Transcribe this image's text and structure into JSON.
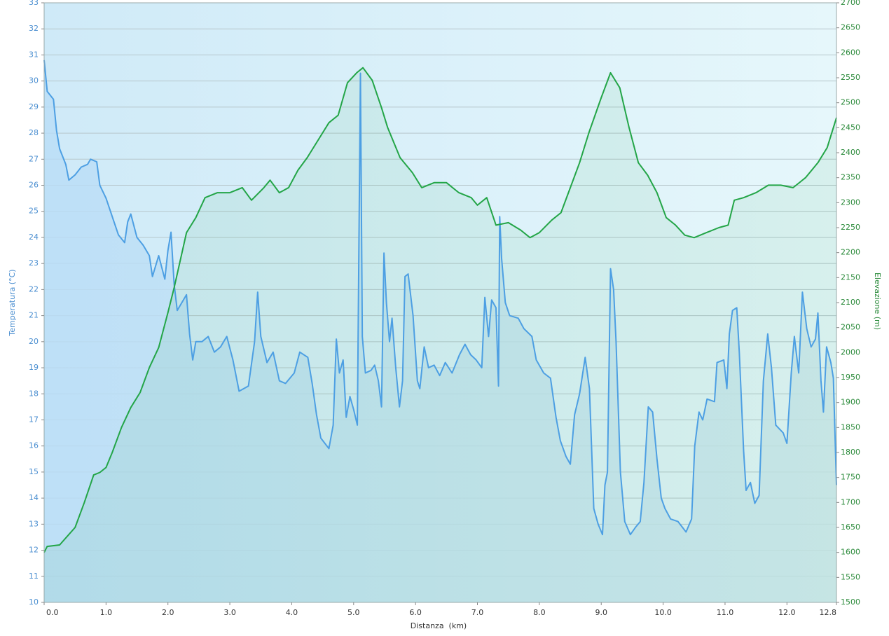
{
  "chart_data": {
    "type": "line",
    "x_label": "Distanza  (km)",
    "y_label": "Temperatura (°C)",
    "y2_label": "Elevazione (m)",
    "xlim": [
      0,
      12.8
    ],
    "xticks": [
      {
        "value": 0,
        "label": "0.0"
      },
      {
        "value": 1,
        "label": "1.0"
      },
      {
        "value": 2,
        "label": "2.0"
      },
      {
        "value": 3,
        "label": "3.0"
      },
      {
        "value": 4,
        "label": "4.0"
      },
      {
        "value": 5,
        "label": "5.0"
      },
      {
        "value": 6,
        "label": "6.0"
      },
      {
        "value": 7,
        "label": "7.0"
      },
      {
        "value": 8,
        "label": "8.0"
      },
      {
        "value": 9,
        "label": "9.0"
      },
      {
        "value": 10,
        "label": "10.0"
      },
      {
        "value": 11,
        "label": "11.0"
      },
      {
        "value": 12,
        "label": "12.0"
      },
      {
        "value": 12.8,
        "label": "12.8"
      }
    ],
    "ylim": [
      10,
      33
    ],
    "yticks": [
      10,
      11,
      12,
      13,
      14,
      15,
      16,
      17,
      18,
      19,
      20,
      21,
      22,
      23,
      24,
      25,
      26,
      27,
      28,
      29,
      30,
      31,
      32,
      33
    ],
    "y2lim": [
      1500,
      2700
    ],
    "y2ticks": [
      1500,
      1550,
      1600,
      1650,
      1700,
      1750,
      1800,
      1850,
      1900,
      1950,
      2000,
      2050,
      2100,
      2150,
      2200,
      2250,
      2300,
      2350,
      2400,
      2450,
      2500,
      2550,
      2600,
      2650,
      2700
    ],
    "grid": true,
    "series": [
      {
        "name": "Temperatura",
        "color": "#4d9fe3",
        "axis": "y",
        "x": [
          0,
          0.05,
          0.15,
          0.2,
          0.25,
          0.35,
          0.4,
          0.5,
          0.6,
          0.7,
          0.75,
          0.85,
          0.9,
          1.0,
          1.1,
          1.2,
          1.3,
          1.35,
          1.4,
          1.5,
          1.6,
          1.7,
          1.75,
          1.85,
          1.95,
          2.0,
          2.05,
          2.1,
          2.15,
          2.25,
          2.3,
          2.35,
          2.4,
          2.45,
          2.55,
          2.65,
          2.75,
          2.85,
          2.95,
          3.05,
          3.15,
          3.3,
          3.4,
          3.45,
          3.5,
          3.6,
          3.7,
          3.8,
          3.9,
          4.04,
          4.13,
          4.26,
          4.33,
          4.4,
          4.47,
          4.6,
          4.67,
          4.72,
          4.77,
          4.83,
          4.88,
          4.94,
          5.0,
          5.06,
          5.11,
          5.14,
          5.19,
          5.28,
          5.34,
          5.4,
          5.45,
          5.49,
          5.53,
          5.58,
          5.62,
          5.68,
          5.74,
          5.79,
          5.83,
          5.88,
          5.96,
          6.03,
          6.07,
          6.14,
          6.21,
          6.3,
          6.39,
          6.48,
          6.59,
          6.71,
          6.8,
          6.89,
          6.98,
          7.07,
          7.12,
          7.18,
          7.23,
          7.3,
          7.34,
          7.36,
          7.39,
          7.45,
          7.52,
          7.66,
          7.75,
          7.88,
          7.95,
          8.07,
          8.18,
          8.27,
          8.34,
          8.43,
          8.5,
          8.57,
          8.65,
          8.74,
          8.81,
          8.88,
          8.95,
          9.02,
          9.06,
          9.1,
          9.15,
          9.2,
          9.24,
          9.31,
          9.38,
          9.47,
          9.56,
          9.63,
          9.69,
          9.76,
          9.83,
          9.9,
          9.97,
          10.03,
          10.12,
          10.24,
          10.37,
          10.46,
          10.51,
          10.58,
          10.64,
          10.71,
          10.83,
          10.87,
          10.98,
          11.03,
          11.07,
          11.12,
          11.19,
          11.23,
          11.3,
          11.34,
          11.41,
          11.48,
          11.55,
          11.62,
          11.69,
          11.75,
          11.82,
          11.94,
          12.0,
          12.07,
          12.12,
          12.19,
          12.25,
          12.32,
          12.39,
          12.46,
          12.5,
          12.55,
          12.59,
          12.64,
          12.71,
          12.75,
          12.8
        ],
        "values": [
          30.8,
          29.6,
          29.3,
          28.1,
          27.4,
          26.8,
          26.2,
          26.4,
          26.7,
          26.8,
          27.0,
          26.9,
          26.0,
          25.5,
          24.8,
          24.1,
          23.8,
          24.6,
          24.9,
          24.0,
          23.7,
          23.3,
          22.5,
          23.3,
          22.4,
          23.5,
          24.2,
          22.2,
          21.2,
          21.6,
          21.8,
          20.3,
          19.3,
          20.0,
          20.0,
          20.2,
          19.6,
          19.8,
          20.2,
          19.3,
          18.1,
          18.3,
          20.0,
          21.9,
          20.2,
          19.2,
          19.6,
          18.5,
          18.4,
          18.8,
          19.6,
          19.4,
          18.4,
          17.2,
          16.3,
          15.9,
          16.8,
          20.1,
          18.8,
          19.3,
          17.1,
          17.9,
          17.4,
          16.8,
          30.3,
          20.2,
          18.8,
          18.9,
          19.1,
          18.5,
          17.5,
          23.4,
          21.5,
          20.0,
          20.9,
          19.0,
          17.5,
          18.5,
          22.5,
          22.6,
          21.0,
          18.5,
          18.2,
          19.8,
          19.0,
          19.1,
          18.7,
          19.2,
          18.8,
          19.5,
          19.9,
          19.5,
          19.3,
          19.0,
          21.7,
          20.2,
          21.6,
          21.3,
          18.3,
          24.8,
          23.2,
          21.5,
          21.0,
          20.9,
          20.5,
          20.2,
          19.3,
          18.8,
          18.6,
          17.1,
          16.2,
          15.6,
          15.3,
          17.2,
          18.0,
          19.4,
          18.2,
          13.6,
          13.0,
          12.6,
          14.5,
          15.0,
          22.8,
          22.0,
          20.0,
          15.0,
          13.1,
          12.6,
          12.9,
          13.1,
          14.6,
          17.5,
          17.3,
          15.5,
          14.0,
          13.6,
          13.2,
          13.1,
          12.7,
          13.2,
          16.0,
          17.3,
          17.0,
          17.8,
          17.7,
          19.2,
          19.3,
          18.2,
          20.3,
          21.2,
          21.3,
          19.6,
          15.8,
          14.3,
          14.6,
          13.8,
          14.1,
          18.5,
          20.3,
          19.0,
          16.8,
          16.5,
          16.1,
          18.8,
          20.2,
          18.8,
          21.9,
          20.5,
          19.8,
          20.1,
          21.1,
          18.5,
          17.3,
          19.8,
          19.2,
          18.6,
          14.5
        ]
      },
      {
        "name": "Elevazione",
        "color": "#23a547",
        "axis": "y2",
        "x": [
          0,
          0.05,
          0.25,
          0.5,
          0.65,
          0.8,
          0.9,
          1.0,
          1.1,
          1.25,
          1.4,
          1.55,
          1.7,
          1.85,
          2.0,
          2.1,
          2.3,
          2.45,
          2.6,
          2.8,
          3.0,
          3.2,
          3.35,
          3.55,
          3.65,
          3.8,
          3.95,
          4.1,
          4.25,
          4.45,
          4.6,
          4.75,
          4.9,
          5.05,
          5.15,
          5.3,
          5.45,
          5.55,
          5.75,
          5.95,
          6.1,
          6.3,
          6.5,
          6.7,
          6.9,
          7.0,
          7.15,
          7.3,
          7.5,
          7.7,
          7.85,
          8.0,
          8.2,
          8.35,
          8.5,
          8.65,
          8.8,
          9.0,
          9.15,
          9.3,
          9.45,
          9.6,
          9.75,
          9.9,
          10.05,
          10.2,
          10.35,
          10.5,
          10.7,
          10.9,
          11.05,
          11.15,
          11.3,
          11.5,
          11.7,
          11.9,
          12.1,
          12.3,
          12.5,
          12.65,
          12.8
        ],
        "values": [
          1600,
          1612,
          1615,
          1650,
          1700,
          1755,
          1760,
          1770,
          1800,
          1850,
          1890,
          1920,
          1970,
          2010,
          2080,
          2130,
          2240,
          2270,
          2310,
          2320,
          2320,
          2330,
          2305,
          2330,
          2345,
          2320,
          2330,
          2365,
          2390,
          2430,
          2460,
          2475,
          2540,
          2560,
          2570,
          2545,
          2490,
          2450,
          2390,
          2360,
          2330,
          2340,
          2340,
          2320,
          2310,
          2295,
          2310,
          2255,
          2260,
          2245,
          2230,
          2240,
          2265,
          2280,
          2330,
          2380,
          2440,
          2510,
          2560,
          2530,
          2450,
          2380,
          2355,
          2320,
          2270,
          2255,
          2235,
          2230,
          2240,
          2250,
          2255,
          2305,
          2310,
          2320,
          2335,
          2335,
          2330,
          2350,
          2380,
          2410,
          2470
        ]
      }
    ]
  }
}
